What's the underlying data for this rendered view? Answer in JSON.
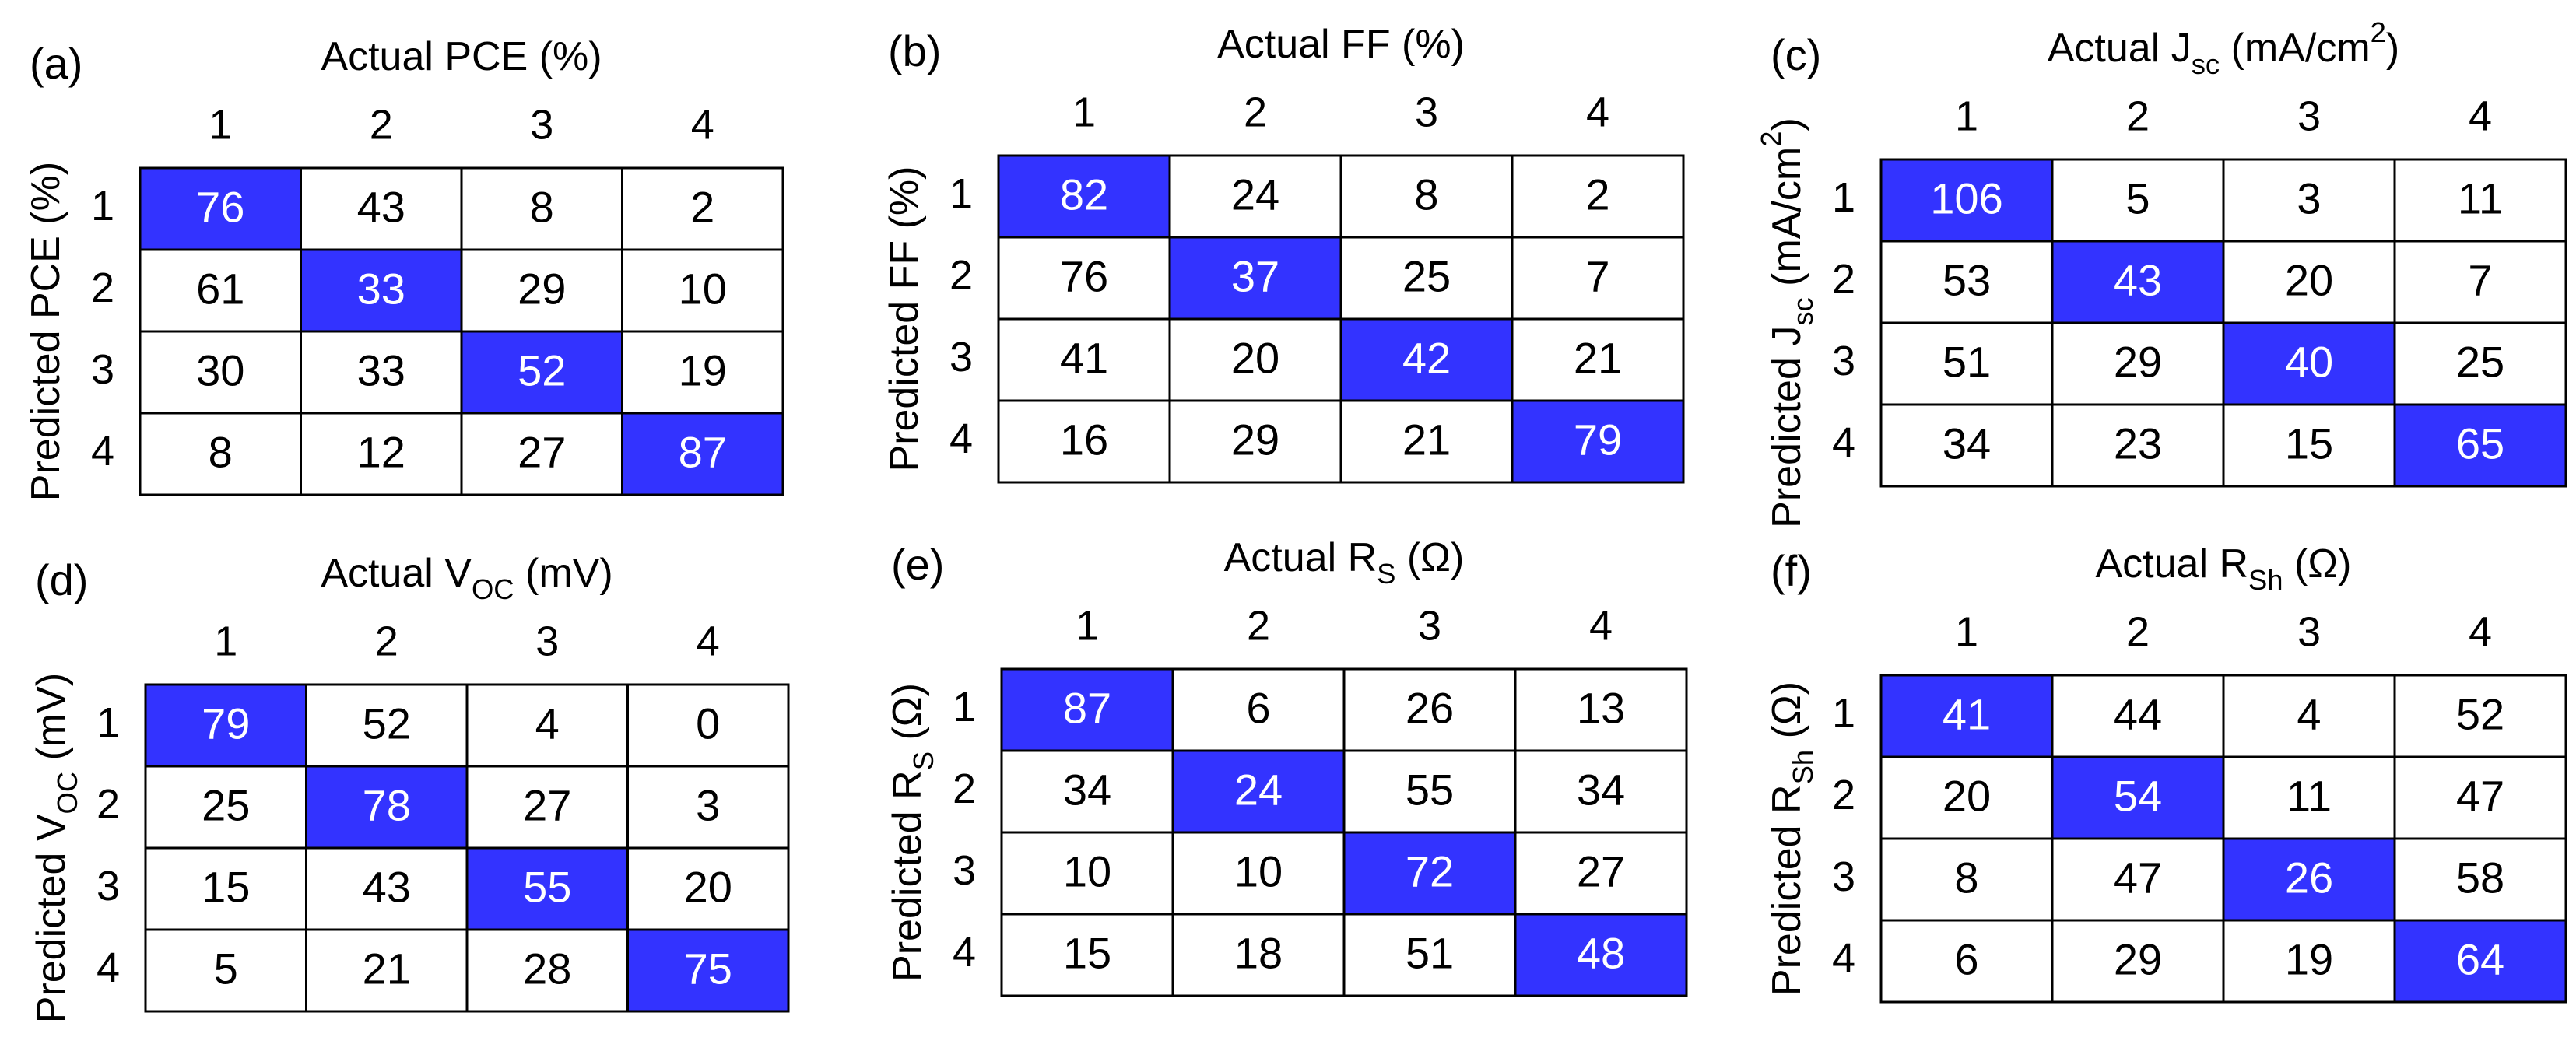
{
  "chart_data": [
    {
      "type": "heatmap",
      "panel": "(a)",
      "title": [
        {
          "text": "Actual PCE (%)"
        }
      ],
      "ylabel": [
        {
          "text": "Predicted PCE (%)"
        }
      ],
      "categories": [
        "1",
        "2",
        "3",
        "4"
      ],
      "rows": [
        "1",
        "2",
        "3",
        "4"
      ],
      "values": [
        [
          76,
          43,
          8,
          2
        ],
        [
          61,
          33,
          29,
          10
        ],
        [
          30,
          33,
          52,
          19
        ],
        [
          8,
          12,
          27,
          87
        ]
      ],
      "highlight": "diagonal",
      "highlight_color": "#3333ff"
    },
    {
      "type": "heatmap",
      "panel": "(b)",
      "title": [
        {
          "text": "Actual FF (%)"
        }
      ],
      "ylabel": [
        {
          "text": "Predicted FF (%)"
        }
      ],
      "categories": [
        "1",
        "2",
        "3",
        "4"
      ],
      "rows": [
        "1",
        "2",
        "3",
        "4"
      ],
      "values": [
        [
          82,
          24,
          8,
          2
        ],
        [
          76,
          37,
          25,
          7
        ],
        [
          41,
          20,
          42,
          21
        ],
        [
          16,
          29,
          21,
          79
        ]
      ],
      "highlight": "diagonal",
      "highlight_color": "#3333ff"
    },
    {
      "type": "heatmap",
      "panel": "(c)",
      "title": [
        {
          "text": "Actual J"
        },
        {
          "text": "sc",
          "style": "sub"
        },
        {
          "text": " (mA/cm"
        },
        {
          "text": "2",
          "style": "sup"
        },
        {
          "text": ")"
        }
      ],
      "ylabel": [
        {
          "text": "Predicted J"
        },
        {
          "text": "sc",
          "style": "sub"
        },
        {
          "text": " (mA/cm"
        },
        {
          "text": "2",
          "style": "sup"
        },
        {
          "text": ")"
        }
      ],
      "categories": [
        "1",
        "2",
        "3",
        "4"
      ],
      "rows": [
        "1",
        "2",
        "3",
        "4"
      ],
      "values": [
        [
          106,
          5,
          3,
          11
        ],
        [
          53,
          43,
          20,
          7
        ],
        [
          51,
          29,
          40,
          25
        ],
        [
          34,
          23,
          15,
          65
        ]
      ],
      "highlight": "diagonal",
      "highlight_color": "#3333ff"
    },
    {
      "type": "heatmap",
      "panel": "(d)",
      "title": [
        {
          "text": "Actual V"
        },
        {
          "text": "OC",
          "style": "sub"
        },
        {
          "text": " (mV)"
        }
      ],
      "ylabel": [
        {
          "text": "Predicted V"
        },
        {
          "text": "OC",
          "style": "sub"
        },
        {
          "text": " (mV)"
        }
      ],
      "categories": [
        "1",
        "2",
        "3",
        "4"
      ],
      "rows": [
        "1",
        "2",
        "3",
        "4"
      ],
      "values": [
        [
          79,
          52,
          4,
          0
        ],
        [
          25,
          78,
          27,
          3
        ],
        [
          15,
          43,
          55,
          20
        ],
        [
          5,
          21,
          28,
          75
        ]
      ],
      "highlight": "diagonal",
      "highlight_color": "#3333ff"
    },
    {
      "type": "heatmap",
      "panel": "(e)",
      "title": [
        {
          "text": "Actual R"
        },
        {
          "text": "S",
          "style": "sub"
        },
        {
          "text": " (Ω)"
        }
      ],
      "ylabel": [
        {
          "text": "Predicted R"
        },
        {
          "text": "S",
          "style": "sub"
        },
        {
          "text": " (Ω)"
        }
      ],
      "categories": [
        "1",
        "2",
        "3",
        "4"
      ],
      "rows": [
        "1",
        "2",
        "3",
        "4"
      ],
      "values": [
        [
          87,
          6,
          26,
          13
        ],
        [
          34,
          24,
          55,
          34
        ],
        [
          10,
          10,
          72,
          27
        ],
        [
          15,
          18,
          51,
          48
        ]
      ],
      "highlight": "diagonal",
      "highlight_color": "#3333ff"
    },
    {
      "type": "heatmap",
      "panel": "(f)",
      "title": [
        {
          "text": "Actual R"
        },
        {
          "text": "Sh",
          "style": "sub"
        },
        {
          "text": " (Ω)"
        }
      ],
      "ylabel": [
        {
          "text": "Predicted R"
        },
        {
          "text": "Sh",
          "style": "sub"
        },
        {
          "text": " (Ω)"
        }
      ],
      "categories": [
        "1",
        "2",
        "3",
        "4"
      ],
      "rows": [
        "1",
        "2",
        "3",
        "4"
      ],
      "values": [
        [
          41,
          44,
          4,
          52
        ],
        [
          20,
          54,
          11,
          47
        ],
        [
          8,
          47,
          26,
          58
        ],
        [
          6,
          29,
          19,
          64
        ]
      ],
      "highlight": "diagonal",
      "highlight_color": "#3333ff"
    }
  ]
}
